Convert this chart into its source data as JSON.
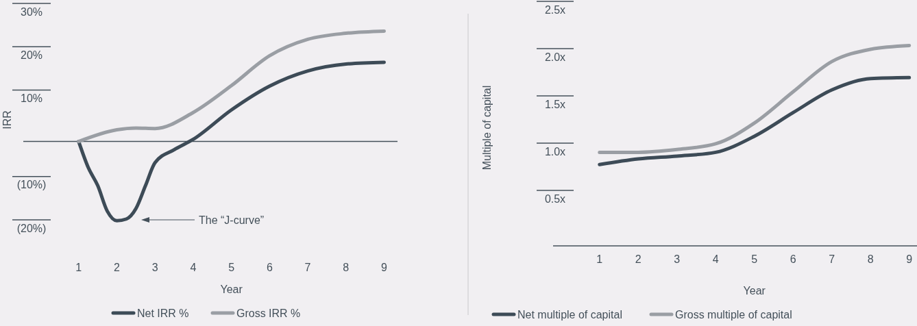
{
  "chart_data": [
    {
      "type": "line",
      "ylabel": "IRR",
      "xlabel": "Year",
      "xlim": [
        -0.45,
        9.35
      ],
      "ylim": [
        -20,
        30
      ],
      "xticks": [
        1,
        2,
        3,
        4,
        5,
        6,
        7,
        8,
        9
      ],
      "yticks": [
        {
          "value": 30,
          "label": "30%"
        },
        {
          "value": 20,
          "label": "20%"
        },
        {
          "value": 10,
          "label": "10%"
        },
        {
          "value": -10,
          "label": "(10%)"
        },
        {
          "value": -20,
          "label": "(20%)"
        }
      ],
      "grid": false,
      "legend": "bottom",
      "annotations": [
        "The “J-curve”"
      ],
      "series": [
        {
          "name": "Net IRR %",
          "color": "#3d4b57",
          "x": [
            1,
            1.25,
            1.5,
            1.75,
            2,
            2.25,
            2.5,
            2.75,
            3,
            3.5,
            4,
            5,
            6,
            7,
            8,
            9
          ],
          "values": [
            0,
            -6,
            -10.2,
            -16.1,
            -18.3,
            -17.9,
            -15.5,
            -10.2,
            -4.9,
            -1.9,
            0.5,
            7.3,
            12.8,
            16.3,
            17.9,
            18.3
          ]
        },
        {
          "name": "Gross IRR %",
          "color": "#9a9ea4",
          "x": [
            1,
            2,
            2.5,
            3,
            4,
            5,
            6,
            7,
            8,
            9
          ],
          "values": [
            0,
            2.7,
            3.1,
            3,
            6.7,
            12.9,
            19.8,
            23.6,
            25,
            25.5
          ]
        }
      ]
    },
    {
      "type": "line",
      "ylabel": "Multiple of capital",
      "xlabel": "Year",
      "xlim": [
        -0.2,
        9.2
      ],
      "ylim": [
        0,
        2.5
      ],
      "xticks": [
        1,
        2,
        3,
        4,
        5,
        6,
        7,
        8,
        9
      ],
      "yticks": [
        {
          "value": 2.5,
          "label": "2.5x"
        },
        {
          "value": 2,
          "label": "2.0x"
        },
        {
          "value": 1.5,
          "label": "1.5x"
        },
        {
          "value": 1,
          "label": "1.0x"
        },
        {
          "value": 0.5,
          "label": "0.5x"
        }
      ],
      "grid": false,
      "legend": "bottom",
      "series": [
        {
          "name": "Net multiple of capital",
          "color": "#3d4b57",
          "x": [
            1,
            2,
            3,
            4,
            5,
            6,
            7,
            8,
            9
          ],
          "values": [
            0.86,
            0.92,
            0.95,
            0.99,
            1.16,
            1.41,
            1.65,
            1.77,
            1.78
          ]
        },
        {
          "name": "Gross multiple of capital",
          "color": "#9a9ea4",
          "x": [
            1,
            2,
            3,
            4,
            5,
            6,
            7,
            8,
            9
          ],
          "values": [
            0.99,
            0.99,
            1.02,
            1.08,
            1.3,
            1.63,
            1.95,
            2.08,
            2.12
          ]
        }
      ]
    }
  ]
}
